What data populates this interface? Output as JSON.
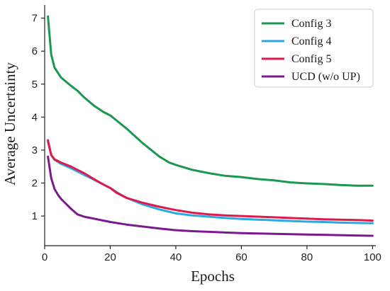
{
  "chart_data": {
    "type": "line",
    "title": "",
    "xlabel": "Epochs",
    "ylabel": "Average Uncertainty",
    "xlim": [
      0,
      101
    ],
    "ylim": [
      0.1,
      7.4
    ],
    "xticks": [
      0,
      20,
      40,
      60,
      80,
      100
    ],
    "yticks": [
      1,
      2,
      3,
      4,
      5,
      6,
      7
    ],
    "grid": false,
    "legend_position": "top-right",
    "series": [
      {
        "name": "Config 3",
        "color": "#1a9850",
        "x": [
          1,
          2,
          3,
          5,
          8,
          10,
          12,
          15,
          18,
          20,
          25,
          30,
          35,
          38,
          40,
          45,
          50,
          55,
          60,
          65,
          70,
          75,
          80,
          85,
          90,
          95,
          100
        ],
        "y": [
          7.05,
          5.9,
          5.5,
          5.2,
          4.95,
          4.8,
          4.6,
          4.35,
          4.15,
          4.05,
          3.65,
          3.2,
          2.8,
          2.62,
          2.55,
          2.4,
          2.3,
          2.22,
          2.18,
          2.12,
          2.08,
          2.02,
          1.99,
          1.97,
          1.94,
          1.92,
          1.92
        ]
      },
      {
        "name": "Config 4",
        "color": "#29abe2",
        "x": [
          1,
          2,
          3,
          5,
          8,
          10,
          12,
          15,
          18,
          20,
          22,
          25,
          30,
          35,
          40,
          45,
          50,
          55,
          60,
          65,
          70,
          75,
          80,
          85,
          90,
          95,
          100
        ],
        "y": [
          3.25,
          2.85,
          2.7,
          2.58,
          2.45,
          2.35,
          2.25,
          2.1,
          1.95,
          1.85,
          1.72,
          1.55,
          1.35,
          1.2,
          1.08,
          1.02,
          0.98,
          0.94,
          0.91,
          0.89,
          0.87,
          0.85,
          0.83,
          0.82,
          0.8,
          0.79,
          0.78
        ]
      },
      {
        "name": "Config 5",
        "color": "#e0194d",
        "x": [
          1,
          2,
          3,
          5,
          8,
          10,
          12,
          15,
          18,
          20,
          22,
          25,
          30,
          35,
          40,
          45,
          50,
          55,
          60,
          65,
          70,
          75,
          80,
          85,
          90,
          95,
          100
        ],
        "y": [
          3.3,
          2.85,
          2.72,
          2.62,
          2.5,
          2.4,
          2.3,
          2.12,
          1.95,
          1.85,
          1.7,
          1.55,
          1.4,
          1.28,
          1.18,
          1.1,
          1.05,
          1.02,
          1.0,
          0.98,
          0.96,
          0.94,
          0.92,
          0.9,
          0.89,
          0.88,
          0.86
        ]
      },
      {
        "name": "UCD (w/o UP)",
        "color": "#7b1a8f",
        "x": [
          1,
          2,
          3,
          4,
          5,
          6,
          8,
          10,
          12,
          15,
          18,
          20,
          25,
          30,
          35,
          40,
          45,
          50,
          55,
          60,
          65,
          70,
          75,
          80,
          85,
          90,
          95,
          100
        ],
        "y": [
          2.8,
          2.15,
          1.82,
          1.65,
          1.52,
          1.42,
          1.22,
          1.05,
          0.98,
          0.92,
          0.86,
          0.82,
          0.74,
          0.68,
          0.62,
          0.57,
          0.54,
          0.52,
          0.5,
          0.48,
          0.47,
          0.46,
          0.45,
          0.44,
          0.43,
          0.42,
          0.41,
          0.4
        ]
      }
    ]
  }
}
